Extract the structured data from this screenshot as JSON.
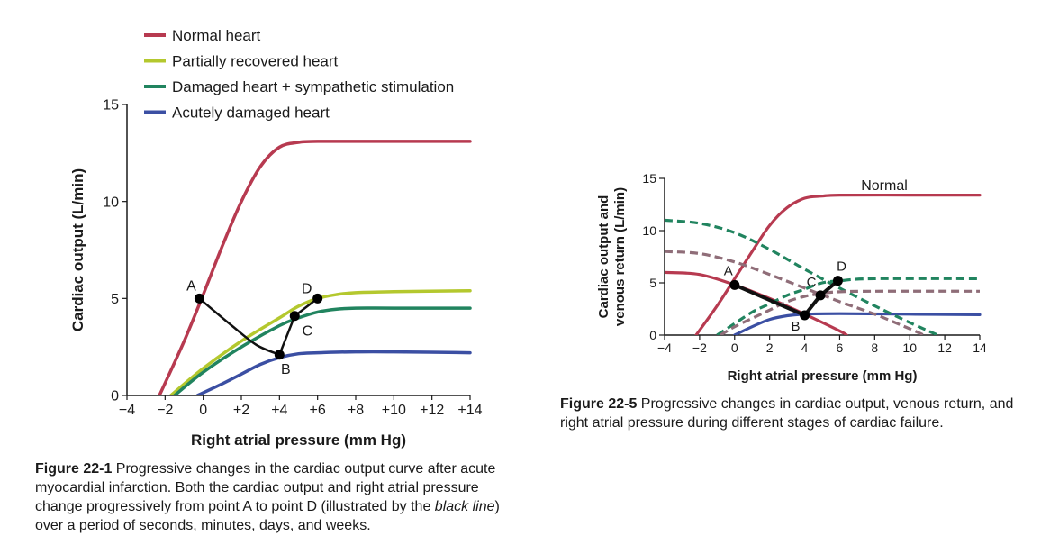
{
  "chart_data": [
    {
      "type": "line",
      "xlabel": "Right atrial pressure (mm Hg)",
      "ylabel": "Cardiac output (L/min)",
      "xlim": [
        -4,
        14
      ],
      "ylim": [
        0,
        15
      ],
      "x_tick_labels": [
        "−4",
        "−2",
        "0",
        "+2",
        "+4",
        "+6",
        "+8",
        "+10",
        "+12",
        "+14"
      ],
      "x_ticks": [
        -4,
        -2,
        0,
        2,
        4,
        6,
        8,
        10,
        12,
        14
      ],
      "y_tick_labels": [
        "0",
        "5",
        "10",
        "15"
      ],
      "y_ticks": [
        0,
        5,
        10,
        15
      ],
      "legend_position": "top",
      "series": [
        {
          "name": "Normal heart",
          "color": "#b73a50",
          "dashed": false,
          "points": [
            [
              -2.3,
              0
            ],
            [
              -1,
              2.8
            ],
            [
              0,
              5.2
            ],
            [
              1,
              7.7
            ],
            [
              2,
              10
            ],
            [
              3,
              11.8
            ],
            [
              4,
              12.8
            ],
            [
              5,
              13.05
            ],
            [
              6,
              13.1
            ],
            [
              10,
              13.1
            ],
            [
              14,
              13.1
            ]
          ]
        },
        {
          "name": "Partially recovered heart",
          "color": "#b4c82e",
          "dashed": false,
          "points": [
            [
              -1.7,
              0
            ],
            [
              0,
              1.4
            ],
            [
              2,
              2.8
            ],
            [
              4,
              4.0
            ],
            [
              5,
              4.6
            ],
            [
              6,
              5.0
            ],
            [
              7,
              5.2
            ],
            [
              8,
              5.3
            ],
            [
              10,
              5.35
            ],
            [
              14,
              5.4
            ]
          ]
        },
        {
          "name": "Damaged heart + sympathetic stimulation",
          "color": "#21845f",
          "dashed": false,
          "points": [
            [
              -1.5,
              0
            ],
            [
              0,
              1.2
            ],
            [
              2,
              2.5
            ],
            [
              4,
              3.6
            ],
            [
              5,
              4.0
            ],
            [
              6,
              4.3
            ],
            [
              7,
              4.45
            ],
            [
              8,
              4.5
            ],
            [
              10,
              4.5
            ],
            [
              14,
              4.5
            ]
          ]
        },
        {
          "name": "Acutely damaged heart",
          "color": "#3b4fa3",
          "dashed": false,
          "points": [
            [
              -0.3,
              0
            ],
            [
              1,
              0.6
            ],
            [
              2,
              1.1
            ],
            [
              3,
              1.6
            ],
            [
              4,
              1.95
            ],
            [
              5,
              2.15
            ],
            [
              6,
              2.2
            ],
            [
              8,
              2.25
            ],
            [
              10,
              2.25
            ],
            [
              14,
              2.2
            ]
          ]
        }
      ],
      "path": {
        "color": "#111111",
        "points": [
          [
            -0.2,
            5
          ],
          [
            1.5,
            3.6
          ],
          [
            2.8,
            2.6
          ],
          [
            4,
            2.1
          ],
          [
            4.8,
            4.1
          ],
          [
            6,
            5.0
          ]
        ],
        "markers": [
          {
            "label": "A",
            "x": -0.2,
            "y": 5
          },
          {
            "label": "B",
            "x": 4,
            "y": 2.1
          },
          {
            "label": "C",
            "x": 4.8,
            "y": 4.1
          },
          {
            "label": "D",
            "x": 6,
            "y": 5.0
          }
        ]
      }
    },
    {
      "type": "line",
      "xlabel": "Right atrial pressure (mm Hg)",
      "ylabel": "Cardiac output and venous return (L/min)",
      "xlim": [
        -4,
        14
      ],
      "ylim": [
        0,
        15
      ],
      "x_tick_labels": [
        "−4",
        "−2",
        "0",
        "2",
        "4",
        "6",
        "8",
        "10",
        "12",
        "14"
      ],
      "x_ticks": [
        -4,
        -2,
        0,
        2,
        4,
        6,
        8,
        10,
        12,
        14
      ],
      "y_tick_labels": [
        "0",
        "5",
        "10",
        "15"
      ],
      "y_ticks": [
        0,
        5,
        10,
        15
      ],
      "annotation": "Normal",
      "series": [
        {
          "color": "#b73a50",
          "dashed": false,
          "points": [
            [
              -2.2,
              0
            ],
            [
              -1,
              2.8
            ],
            [
              0,
              5.4
            ],
            [
              1,
              8.0
            ],
            [
              2,
              10.5
            ],
            [
              3,
              12.2
            ],
            [
              4,
              13.1
            ],
            [
              5,
              13.3
            ],
            [
              6,
              13.4
            ],
            [
              10,
              13.4
            ],
            [
              14,
              13.4
            ]
          ]
        },
        {
          "color": "#b73a50",
          "dashed": false,
          "points": [
            [
              -4,
              6
            ],
            [
              -2,
              5.8
            ],
            [
              0,
              4.8
            ],
            [
              2,
              3.5
            ],
            [
              4,
              2.0
            ],
            [
              6,
              0.4
            ],
            [
              6.4,
              0
            ]
          ]
        },
        {
          "color": "#3b4fa3",
          "dashed": false,
          "points": [
            [
              0,
              0
            ],
            [
              1,
              0.8
            ],
            [
              2,
              1.5
            ],
            [
              3,
              1.85
            ],
            [
              4,
              2.0
            ],
            [
              6,
              2.05
            ],
            [
              10,
              2.0
            ],
            [
              14,
              1.95
            ]
          ]
        },
        {
          "color": "#21845f",
          "dashed": true,
          "points": [
            [
              -4,
              11
            ],
            [
              -2,
              10.7
            ],
            [
              0,
              9.8
            ],
            [
              2,
              8.2
            ],
            [
              4,
              6.3
            ],
            [
              6,
              4.5
            ],
            [
              8,
              2.8
            ],
            [
              10,
              1.2
            ],
            [
              11.6,
              0
            ]
          ]
        },
        {
          "color": "#8f6d78",
          "dashed": true,
          "points": [
            [
              -4,
              8
            ],
            [
              -2,
              7.8
            ],
            [
              0,
              7.0
            ],
            [
              2,
              5.8
            ],
            [
              4,
              4.5
            ],
            [
              6,
              3.2
            ],
            [
              8,
              2.0
            ],
            [
              10,
              0.6
            ],
            [
              10.8,
              0
            ]
          ]
        },
        {
          "color": "#21845f",
          "dashed": true,
          "points": [
            [
              -1,
              0
            ],
            [
              0,
              1.1
            ],
            [
              1,
              2.2
            ],
            [
              2,
              3.0
            ],
            [
              3,
              3.8
            ],
            [
              4,
              4.4
            ],
            [
              5,
              5.0
            ],
            [
              6,
              5.2
            ],
            [
              8,
              5.4
            ],
            [
              14,
              5.4
            ]
          ]
        },
        {
          "color": "#8f6d78",
          "dashed": true,
          "points": [
            [
              -0.8,
              0
            ],
            [
              0,
              0.8
            ],
            [
              1,
              1.6
            ],
            [
              2,
              2.4
            ],
            [
              3,
              3.2
            ],
            [
              4,
              3.7
            ],
            [
              5,
              4.0
            ],
            [
              6,
              4.15
            ],
            [
              8,
              4.2
            ],
            [
              14,
              4.2
            ]
          ]
        }
      ],
      "path": {
        "color": "#111111",
        "points": [
          [
            0,
            4.8
          ],
          [
            4,
            1.9
          ],
          [
            4.9,
            3.8
          ],
          [
            5.9,
            5.2
          ]
        ],
        "markers": [
          {
            "label": "A",
            "x": 0,
            "y": 4.8
          },
          {
            "label": "B",
            "x": 4,
            "y": 1.9
          },
          {
            "label": "C",
            "x": 4.9,
            "y": 3.8
          },
          {
            "label": "D",
            "x": 5.9,
            "y": 5.2
          }
        ]
      }
    }
  ],
  "captions": {
    "figure1": {
      "label": "Figure 22-1",
      "text_a": " Progressive changes in the cardiac output curve after acute myocardial infarction. Both the cardiac output and right atrial pressure change progressively from point A to point D (illustrated by the ",
      "italic": "black line",
      "text_b": ") over a period of seconds, minutes, days, and weeks."
    },
    "figure2": {
      "label": "Figure 22-5",
      "text": " Progressive changes in cardiac output, venous return, and right atrial pressure during different stages of cardiac failure."
    }
  }
}
